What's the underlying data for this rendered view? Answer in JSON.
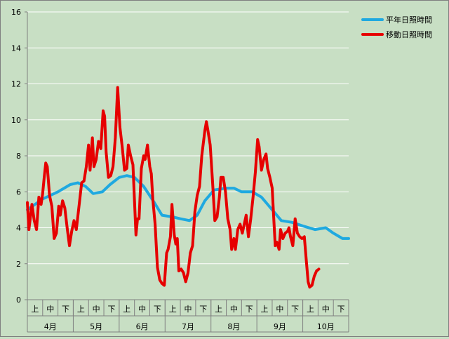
{
  "chart_data": {
    "type": "line",
    "title": "",
    "xlabel": "",
    "ylabel": "",
    "ylim": [
      0,
      16
    ],
    "y_ticks": [
      0,
      2,
      4,
      6,
      8,
      10,
      12,
      14,
      16
    ],
    "grid": true,
    "legend_position": "top-right",
    "background_color": "#c8dfc4",
    "groups": [
      {
        "month": "4月",
        "subcategories": [
          "上",
          "中",
          "下"
        ]
      },
      {
        "month": "5月",
        "subcategories": [
          "上",
          "中",
          "下"
        ]
      },
      {
        "month": "6月",
        "subcategories": [
          "上",
          "中",
          "下"
        ]
      },
      {
        "month": "7月",
        "subcategories": [
          "上",
          "中",
          "下"
        ]
      },
      {
        "month": "8月",
        "subcategories": [
          "上",
          "中",
          "下"
        ]
      },
      {
        "month": "9月",
        "subcategories": [
          "上",
          "中",
          "下"
        ]
      },
      {
        "month": "10月",
        "subcategories": [
          "上",
          "中",
          "下"
        ]
      }
    ],
    "x_position_unit": "position along the 21 ten-day periods (0 = start of 4月上旬, 21 = end of 10月下旬)",
    "series": [
      {
        "name": "平年日照時間",
        "color": "#1fa9e0",
        "points": [
          [
            0.0,
            5.0
          ],
          [
            1.0,
            5.6
          ],
          [
            2.0,
            6.0
          ],
          [
            2.8,
            6.4
          ],
          [
            3.3,
            6.5
          ],
          [
            3.8,
            6.3
          ],
          [
            4.3,
            5.9
          ],
          [
            4.9,
            6.0
          ],
          [
            5.4,
            6.4
          ],
          [
            6.0,
            6.8
          ],
          [
            6.5,
            6.9
          ],
          [
            7.0,
            6.8
          ],
          [
            7.6,
            6.3
          ],
          [
            8.3,
            5.4
          ],
          [
            8.8,
            4.7
          ],
          [
            9.5,
            4.6
          ],
          [
            10.0,
            4.5
          ],
          [
            10.6,
            4.4
          ],
          [
            11.1,
            4.7
          ],
          [
            11.6,
            5.5
          ],
          [
            12.2,
            6.1
          ],
          [
            13.0,
            6.2
          ],
          [
            13.5,
            6.2
          ],
          [
            14.0,
            6.0
          ],
          [
            14.7,
            6.0
          ],
          [
            15.3,
            5.7
          ],
          [
            16.0,
            5.0
          ],
          [
            16.6,
            4.4
          ],
          [
            17.3,
            4.3
          ],
          [
            18.0,
            4.1
          ],
          [
            18.8,
            3.9
          ],
          [
            19.5,
            4.0
          ],
          [
            20.0,
            3.7
          ],
          [
            20.6,
            3.4
          ],
          [
            21.0,
            3.4
          ]
        ]
      },
      {
        "name": "移動日照時間",
        "color": "#e60000",
        "points": [
          [
            0.0,
            5.4
          ],
          [
            0.1,
            3.9
          ],
          [
            0.3,
            5.3
          ],
          [
            0.45,
            4.4
          ],
          [
            0.6,
            3.9
          ],
          [
            0.75,
            5.7
          ],
          [
            0.9,
            5.3
          ],
          [
            1.0,
            5.9
          ],
          [
            1.1,
            6.8
          ],
          [
            1.2,
            7.6
          ],
          [
            1.3,
            7.4
          ],
          [
            1.45,
            5.8
          ],
          [
            1.6,
            5.2
          ],
          [
            1.75,
            3.4
          ],
          [
            1.9,
            3.7
          ],
          [
            2.05,
            5.2
          ],
          [
            2.15,
            4.7
          ],
          [
            2.3,
            5.5
          ],
          [
            2.45,
            5.1
          ],
          [
            2.6,
            4.0
          ],
          [
            2.75,
            3.0
          ],
          [
            2.9,
            3.8
          ],
          [
            3.05,
            4.4
          ],
          [
            3.2,
            3.9
          ],
          [
            3.4,
            5.4
          ],
          [
            3.55,
            6.5
          ],
          [
            3.7,
            6.6
          ],
          [
            3.85,
            7.4
          ],
          [
            4.0,
            8.6
          ],
          [
            4.1,
            7.2
          ],
          [
            4.25,
            9.0
          ],
          [
            4.35,
            7.4
          ],
          [
            4.5,
            7.8
          ],
          [
            4.65,
            8.8
          ],
          [
            4.8,
            8.4
          ],
          [
            4.95,
            10.5
          ],
          [
            5.05,
            10.2
          ],
          [
            5.15,
            8.2
          ],
          [
            5.3,
            6.8
          ],
          [
            5.45,
            6.9
          ],
          [
            5.6,
            7.4
          ],
          [
            5.75,
            9.0
          ],
          [
            5.9,
            11.8
          ],
          [
            6.05,
            9.6
          ],
          [
            6.2,
            8.5
          ],
          [
            6.35,
            7.2
          ],
          [
            6.5,
            7.3
          ],
          [
            6.6,
            8.6
          ],
          [
            6.75,
            8.0
          ],
          [
            6.9,
            7.5
          ],
          [
            7.0,
            5.5
          ],
          [
            7.1,
            3.6
          ],
          [
            7.2,
            4.5
          ],
          [
            7.3,
            4.5
          ],
          [
            7.45,
            7.3
          ],
          [
            7.6,
            8.0
          ],
          [
            7.7,
            7.8
          ],
          [
            7.85,
            8.6
          ],
          [
            8.0,
            7.4
          ],
          [
            8.1,
            7.0
          ],
          [
            8.2,
            5.6
          ],
          [
            8.35,
            4.2
          ],
          [
            8.5,
            1.8
          ],
          [
            8.65,
            1.1
          ],
          [
            8.8,
            0.9
          ],
          [
            8.95,
            0.8
          ],
          [
            9.1,
            2.6
          ],
          [
            9.2,
            2.8
          ],
          [
            9.35,
            3.5
          ],
          [
            9.45,
            5.3
          ],
          [
            9.6,
            3.6
          ],
          [
            9.7,
            3.1
          ],
          [
            9.8,
            3.4
          ],
          [
            9.9,
            1.6
          ],
          [
            10.05,
            1.7
          ],
          [
            10.2,
            1.5
          ],
          [
            10.35,
            1.0
          ],
          [
            10.5,
            1.5
          ],
          [
            10.65,
            2.6
          ],
          [
            10.8,
            3.0
          ],
          [
            10.95,
            4.9
          ],
          [
            11.1,
            5.8
          ],
          [
            11.25,
            6.3
          ],
          [
            11.4,
            8.0
          ],
          [
            11.6,
            9.4
          ],
          [
            11.7,
            9.9
          ],
          [
            11.8,
            9.4
          ],
          [
            11.95,
            8.6
          ],
          [
            12.1,
            6.6
          ],
          [
            12.25,
            4.4
          ],
          [
            12.4,
            4.6
          ],
          [
            12.55,
            5.7
          ],
          [
            12.65,
            6.8
          ],
          [
            12.8,
            6.8
          ],
          [
            12.95,
            6.0
          ],
          [
            13.1,
            4.5
          ],
          [
            13.25,
            3.9
          ],
          [
            13.35,
            2.8
          ],
          [
            13.5,
            3.4
          ],
          [
            13.6,
            2.8
          ],
          [
            13.75,
            3.9
          ],
          [
            13.9,
            4.2
          ],
          [
            14.05,
            3.7
          ],
          [
            14.15,
            4.1
          ],
          [
            14.3,
            4.7
          ],
          [
            14.45,
            3.5
          ],
          [
            14.6,
            4.5
          ],
          [
            14.75,
            5.7
          ],
          [
            14.9,
            7.1
          ],
          [
            15.05,
            8.9
          ],
          [
            15.15,
            8.5
          ],
          [
            15.3,
            7.2
          ],
          [
            15.45,
            7.8
          ],
          [
            15.6,
            8.1
          ],
          [
            15.7,
            7.3
          ],
          [
            15.85,
            6.8
          ],
          [
            16.0,
            6.2
          ],
          [
            16.1,
            4.6
          ],
          [
            16.2,
            3.0
          ],
          [
            16.3,
            3.2
          ],
          [
            16.45,
            2.8
          ],
          [
            16.55,
            3.9
          ],
          [
            16.7,
            3.4
          ],
          [
            16.85,
            3.7
          ],
          [
            17.0,
            3.8
          ],
          [
            17.1,
            4.0
          ],
          [
            17.2,
            3.5
          ],
          [
            17.35,
            3.0
          ],
          [
            17.5,
            4.5
          ],
          [
            17.65,
            3.7
          ],
          [
            17.8,
            3.5
          ],
          [
            17.95,
            3.4
          ],
          [
            18.1,
            3.5
          ],
          [
            18.2,
            2.5
          ],
          [
            18.35,
            1.0
          ],
          [
            18.45,
            0.7
          ],
          [
            18.6,
            0.8
          ],
          [
            18.75,
            1.3
          ],
          [
            18.9,
            1.6
          ],
          [
            19.05,
            1.7
          ]
        ]
      }
    ]
  }
}
